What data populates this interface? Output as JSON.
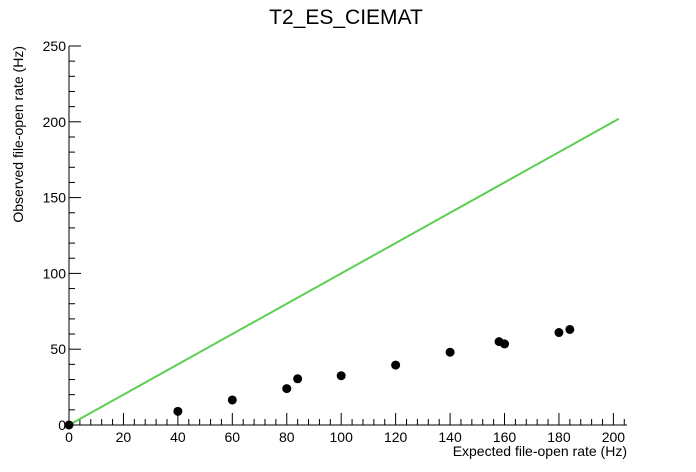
{
  "chart_data": {
    "type": "scatter",
    "title": "T2_ES_CIEMAT",
    "xlabel": "Expected file-open rate (Hz)",
    "ylabel": "Observed file-open rate (Hz)",
    "xlim": [
      0,
      205
    ],
    "ylim": [
      0,
      250
    ],
    "x_ticks": [
      "0",
      "20",
      "40",
      "60",
      "80",
      "100",
      "120",
      "140",
      "160",
      "180",
      "200"
    ],
    "y_ticks": [
      "0",
      "50",
      "100",
      "150",
      "200",
      "250"
    ],
    "grid": false,
    "series": [
      {
        "x": [
          0,
          40,
          60,
          80,
          84,
          100,
          120,
          140,
          158,
          160,
          180,
          184
        ],
        "y": [
          0,
          9,
          16.5,
          24,
          30.5,
          32.5,
          39.5,
          48,
          55,
          53.5,
          61,
          63
        ],
        "color": "#000000"
      }
    ],
    "reference_line": {
      "x": [
        0,
        202
      ],
      "y": [
        0,
        202
      ],
      "color": "#5ccf52"
    }
  }
}
